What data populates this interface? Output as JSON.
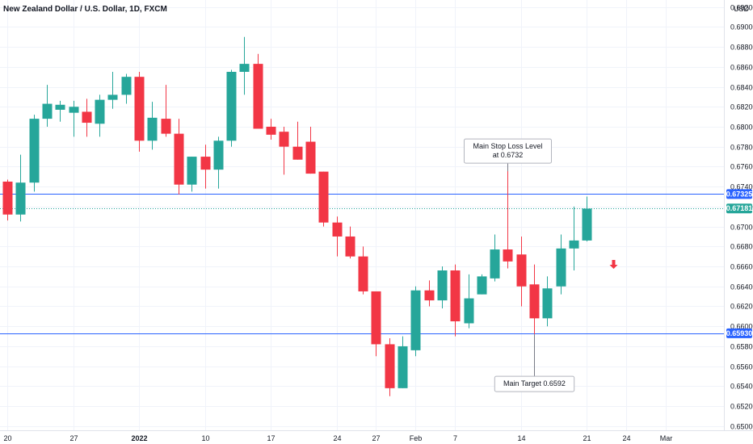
{
  "chart_data": {
    "type": "candlestick",
    "title": "New Zealand Dollar / U.S. Dollar, 1D, FXCM",
    "currency": "USD",
    "ylim": [
      0.6495,
      0.6927
    ],
    "y_ticks": [
      0.65,
      0.652,
      0.654,
      0.656,
      0.658,
      0.66,
      0.662,
      0.664,
      0.666,
      0.668,
      0.67,
      0.672,
      0.674,
      0.676,
      0.678,
      0.68,
      0.682,
      0.684,
      0.686,
      0.688,
      0.69,
      0.692
    ],
    "x_ticks": [
      {
        "label": "20",
        "i": 0
      },
      {
        "label": "27",
        "i": 5
      },
      {
        "label": "2022",
        "i": 10
      },
      {
        "label": "10",
        "i": 15
      },
      {
        "label": "17",
        "i": 20
      },
      {
        "label": "24",
        "i": 25
      },
      {
        "label": "27",
        "i": 28
      },
      {
        "label": "Feb",
        "i": 31
      },
      {
        "label": "7",
        "i": 34
      },
      {
        "label": "14",
        "i": 39
      },
      {
        "label": "21",
        "i": 44
      },
      {
        "label": "24",
        "i": 47
      },
      {
        "label": "Mar",
        "i": 50
      }
    ],
    "candles": [
      [
        0.6745,
        0.6747,
        0.6706,
        0.6712
      ],
      [
        0.6712,
        0.6772,
        0.6705,
        0.6744
      ],
      [
        0.6744,
        0.6812,
        0.6735,
        0.6808
      ],
      [
        0.6808,
        0.6842,
        0.68,
        0.6823
      ],
      [
        0.6817,
        0.6826,
        0.6805,
        0.6822
      ],
      [
        0.6814,
        0.6826,
        0.679,
        0.682
      ],
      [
        0.6815,
        0.6828,
        0.679,
        0.6804
      ],
      [
        0.6803,
        0.6832,
        0.679,
        0.6827
      ],
      [
        0.6827,
        0.6855,
        0.6818,
        0.6832
      ],
      [
        0.6832,
        0.6853,
        0.6823,
        0.685
      ],
      [
        0.685,
        0.6855,
        0.6775,
        0.6786
      ],
      [
        0.6786,
        0.6825,
        0.6777,
        0.6809
      ],
      [
        0.6808,
        0.6842,
        0.679,
        0.6793
      ],
      [
        0.6793,
        0.6808,
        0.6732,
        0.6742
      ],
      [
        0.6742,
        0.677,
        0.6735,
        0.677
      ],
      [
        0.677,
        0.6782,
        0.6738,
        0.6757
      ],
      [
        0.6757,
        0.679,
        0.6738,
        0.6786
      ],
      [
        0.6786,
        0.6857,
        0.678,
        0.6855
      ],
      [
        0.6855,
        0.689,
        0.6832,
        0.6863
      ],
      [
        0.6863,
        0.6873,
        0.68,
        0.6798
      ],
      [
        0.68,
        0.6808,
        0.6787,
        0.6792
      ],
      [
        0.6795,
        0.68,
        0.6752,
        0.678
      ],
      [
        0.678,
        0.6805,
        0.6767,
        0.6767
      ],
      [
        0.6785,
        0.68,
        0.6753,
        0.6753
      ],
      [
        0.6755,
        0.6755,
        0.67,
        0.6704
      ],
      [
        0.6704,
        0.671,
        0.667,
        0.669
      ],
      [
        0.669,
        0.67,
        0.6668,
        0.667
      ],
      [
        0.667,
        0.668,
        0.6632,
        0.6635
      ],
      [
        0.6635,
        0.6635,
        0.657,
        0.6582
      ],
      [
        0.6582,
        0.6588,
        0.653,
        0.6538
      ],
      [
        0.6538,
        0.659,
        0.6538,
        0.658
      ],
      [
        0.6576,
        0.664,
        0.657,
        0.6636
      ],
      [
        0.6636,
        0.6646,
        0.662,
        0.6626
      ],
      [
        0.6626,
        0.666,
        0.6618,
        0.6656
      ],
      [
        0.6656,
        0.6662,
        0.659,
        0.6605
      ],
      [
        0.6603,
        0.6652,
        0.6598,
        0.6628
      ],
      [
        0.6632,
        0.6652,
        0.6632,
        0.665
      ],
      [
        0.6648,
        0.6692,
        0.6645,
        0.6677
      ],
      [
        0.6677,
        0.6757,
        0.6658,
        0.6665
      ],
      [
        0.6672,
        0.669,
        0.662,
        0.664
      ],
      [
        0.6642,
        0.6662,
        0.6592,
        0.6608
      ],
      [
        0.6608,
        0.665,
        0.66,
        0.6638
      ],
      [
        0.664,
        0.6692,
        0.6632,
        0.6678
      ],
      [
        0.6678,
        0.672,
        0.6656,
        0.6686
      ],
      [
        0.6686,
        0.673,
        0.6685,
        0.6718
      ]
    ],
    "horizontal_lines": [
      {
        "value": 0.67325,
        "color": "#2962ff",
        "style": "solid",
        "tag": "0.67325",
        "tag_color": "#2962ff"
      },
      {
        "value": 0.6593,
        "color": "#2962ff",
        "style": "solid",
        "tag": "0.65930",
        "tag_color": "#2962ff"
      },
      {
        "value": 0.67181,
        "color": "#26a69a",
        "style": "dotted",
        "tag": "0.67181",
        "tag_color": "#26a69a"
      }
    ],
    "annotations": [
      {
        "lines": [
          "Main Stop Loss Level",
          "at 0.6732"
        ],
        "i": 38,
        "value": 0.6757,
        "anchor": "above"
      },
      {
        "lines": [
          "Main Target 0.6592"
        ],
        "i": 40,
        "value": 0.6592,
        "anchor": "below"
      }
    ],
    "arrow": {
      "i": 46,
      "value": 0.666,
      "direction": "down",
      "color": "#f23645"
    },
    "colors": {
      "up": "#26a69a",
      "down": "#f23645",
      "grid": "#f0f3fa",
      "axis_text": "#131722",
      "border": "#e0e3eb"
    }
  }
}
